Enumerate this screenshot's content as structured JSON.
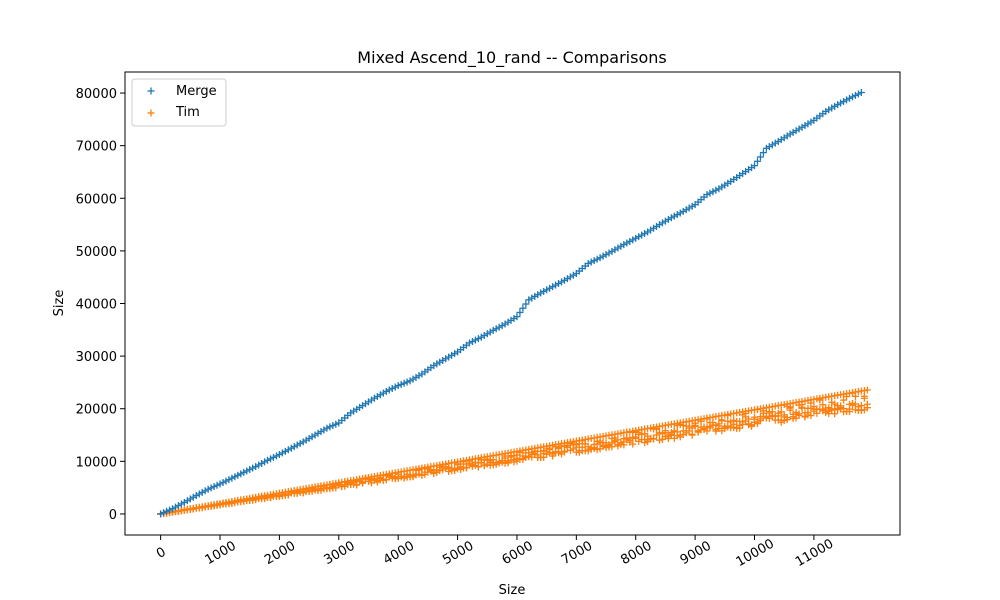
{
  "chart_data": {
    "type": "scatter",
    "title": "Mixed Ascend_10_rand -- Comparisons",
    "xlabel": "Size",
    "ylabel": "Size",
    "xlim": [
      -600,
      12450
    ],
    "ylim": [
      -4000,
      84000
    ],
    "xticks": [
      0,
      1000,
      2000,
      3000,
      4000,
      5000,
      6000,
      7000,
      8000,
      9000,
      10000,
      11000
    ],
    "xtick_labels": [
      "0",
      "1000",
      "2000",
      "3000",
      "4000",
      "5000",
      "6000",
      "7000",
      "8000",
      "9000",
      "10000",
      "11000"
    ],
    "xtick_rotation_deg": 30,
    "yticks": [
      0,
      10000,
      20000,
      30000,
      40000,
      50000,
      60000,
      70000,
      80000
    ],
    "ytick_labels": [
      "0",
      "10000",
      "20000",
      "30000",
      "40000",
      "50000",
      "60000",
      "70000",
      "80000"
    ],
    "grid": false,
    "legend_position": "top-left",
    "marker": "+",
    "series": [
      {
        "name": "Merge",
        "color": "#1f77b4",
        "x": [
          0,
          200,
          400,
          600,
          800,
          1000,
          1200,
          1400,
          1600,
          1800,
          2000,
          2200,
          2400,
          2600,
          2800,
          3000,
          3200,
          3400,
          3600,
          3800,
          4000,
          4200,
          4400,
          4600,
          4800,
          5000,
          5200,
          5400,
          5600,
          5800,
          6000,
          6200,
          6400,
          6600,
          6800,
          7000,
          7200,
          7400,
          7600,
          7800,
          8000,
          8200,
          8400,
          8600,
          8800,
          9000,
          9200,
          9400,
          9600,
          9800,
          10000,
          10200,
          10400,
          10600,
          10800,
          11000,
          11200,
          11400,
          11600,
          11800
        ],
        "y": [
          0,
          1000,
          2200,
          3500,
          4700,
          5700,
          6800,
          7900,
          9000,
          10200,
          11300,
          12500,
          13700,
          15000,
          16300,
          17300,
          19200,
          20600,
          22000,
          23300,
          24400,
          25300,
          26600,
          28200,
          29500,
          30800,
          32500,
          33600,
          34900,
          36100,
          37500,
          40700,
          42000,
          43200,
          44400,
          45700,
          47600,
          48700,
          49900,
          51200,
          52400,
          53600,
          55000,
          56300,
          57500,
          58800,
          60700,
          61800,
          63200,
          64700,
          66200,
          69500,
          70800,
          72200,
          73500,
          74800,
          76500,
          77800,
          79000,
          80100
        ]
      },
      {
        "name": "Tim",
        "color": "#ff7f0e",
        "upper_slope": 1.98,
        "lower_slope": 1.66,
        "x_range": [
          0,
          11900
        ]
      }
    ]
  }
}
